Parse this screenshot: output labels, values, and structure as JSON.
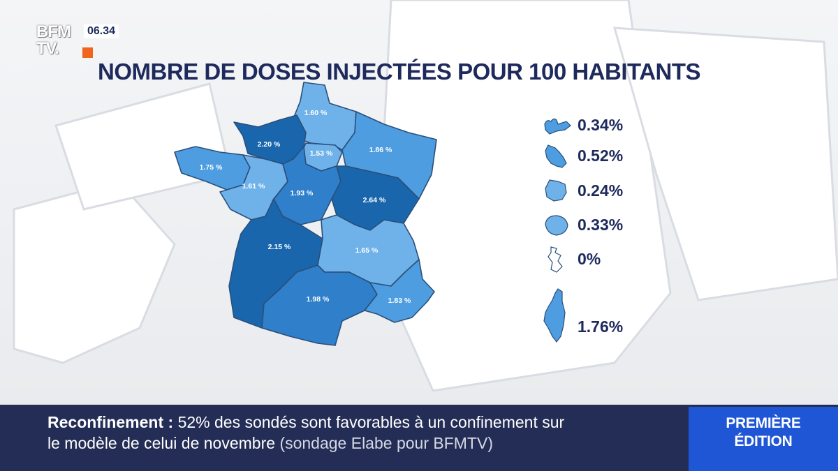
{
  "channel": {
    "logo_top": "BFM",
    "logo_bottom": "TV.",
    "time": "06.34"
  },
  "title": "NOMBRE DE DOSES INJECTÉES POUR 100 HABITANTS",
  "colors": {
    "dark": "#1a66ad",
    "mid": "#2f7fca",
    "light": "#4d9de0",
    "pale": "#6fb2ea",
    "navy": "#1e2a5c"
  },
  "regions": [
    {
      "name": "Hauts-de-France",
      "value": "1.60 %"
    },
    {
      "name": "Normandie",
      "value": "2.20 %"
    },
    {
      "name": "Île-de-France",
      "value": "1.53 %"
    },
    {
      "name": "Grand Est",
      "value": "1.86 %"
    },
    {
      "name": "Bretagne",
      "value": "1.75 %"
    },
    {
      "name": "Pays de la Loire",
      "value": "1.61 %"
    },
    {
      "name": "Centre-Val de Loire",
      "value": "1.93 %"
    },
    {
      "name": "Bourgogne-Franche-Comté",
      "value": "2.64 %"
    },
    {
      "name": "Nouvelle-Aquitaine",
      "value": "2.15 %"
    },
    {
      "name": "Auvergne-Rhône-Alpes",
      "value": "1.65 %"
    },
    {
      "name": "Occitanie",
      "value": "1.98 %"
    },
    {
      "name": "Provence-Alpes-Côte d'Azur",
      "value": "1.83 %"
    }
  ],
  "legend": [
    {
      "icon": "guadeloupe-shape-icon",
      "value": "0.34%"
    },
    {
      "icon": "martinique-shape-icon",
      "value": "0.52%"
    },
    {
      "icon": "guyane-shape-icon",
      "value": "0.24%"
    },
    {
      "icon": "reunion-shape-icon",
      "value": "0.33%"
    },
    {
      "icon": "mayotte-shape-icon",
      "value": "0%"
    },
    {
      "icon": "corse-shape-icon",
      "value": "1.76%"
    }
  ],
  "ticker": {
    "keyword": "Reconfinement :",
    "line1": "52% des sondés sont favorables à un confinement sur",
    "line2": "le modèle de celui de novembre",
    "source": "(sondage Elabe pour BFMTV)"
  },
  "edition": {
    "line1": "PREMIÈRE",
    "line2": "ÉDITION"
  }
}
